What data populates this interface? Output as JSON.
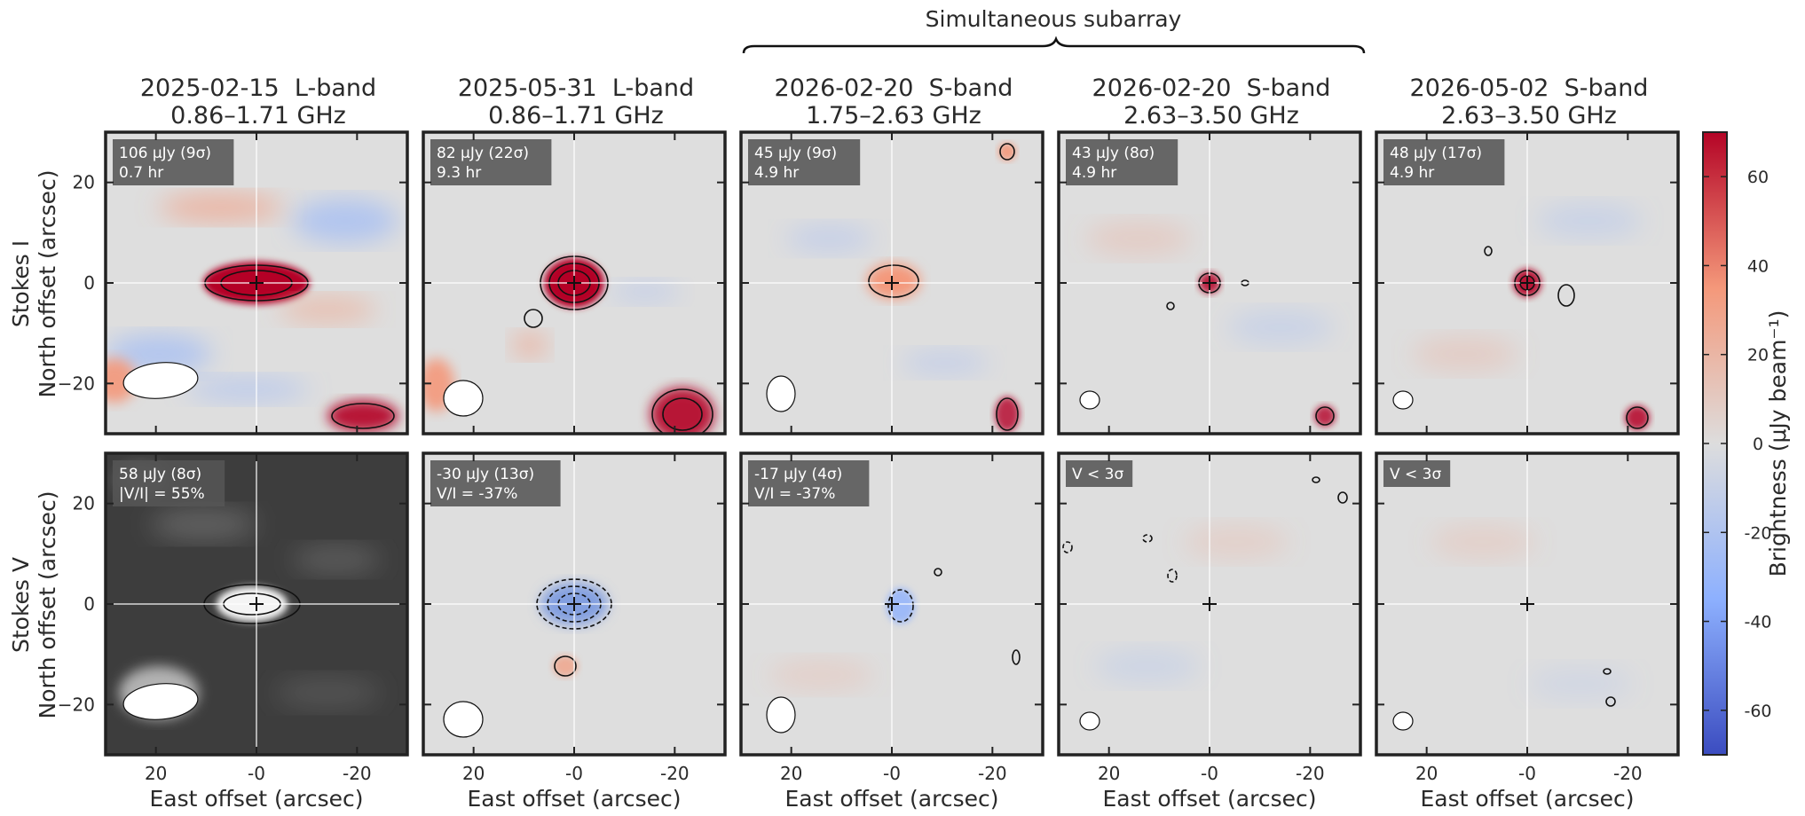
{
  "figure": {
    "bracket_label": "Simultaneous subarray",
    "row_labels": [
      "Stokes I",
      "Stokes V"
    ],
    "y_axis_label": "North offset (arcsec)",
    "x_axis_label": "East offset (arcsec)",
    "colorbar_label": "Brightness (μJy beam⁻¹)"
  },
  "columns": [
    {
      "date": "2025-02-15",
      "band": "L-band",
      "freq": "0.86–1.71 GHz"
    },
    {
      "date": "2025-05-31",
      "band": "L-band",
      "freq": "0.86–1.71 GHz"
    },
    {
      "date": "2026-02-20",
      "band": "S-band",
      "freq": "1.75–2.63 GHz"
    },
    {
      "date": "2026-02-20",
      "band": "S-band",
      "freq": "2.63–3.50 GHz"
    },
    {
      "date": "2026-05-02",
      "band": "S-band",
      "freq": "2.63–3.50 GHz"
    }
  ],
  "chart_data": [
    {
      "type": "heatmap",
      "panel": "Stokes I 2025-02-15 L-band",
      "annotation": [
        "106 μJy (9σ)",
        "0.7 hr"
      ],
      "peak_uJy": 106,
      "snr": 9,
      "time_hr": 0.7,
      "source_position_arcsec": [
        0,
        0
      ],
      "colormap": "diverging"
    },
    {
      "type": "heatmap",
      "panel": "Stokes I 2025-05-31 L-band",
      "annotation": [
        "82 μJy (22σ)",
        "9.3 hr"
      ],
      "peak_uJy": 82,
      "snr": 22,
      "time_hr": 9.3,
      "source_position_arcsec": [
        0,
        0
      ],
      "colormap": "diverging"
    },
    {
      "type": "heatmap",
      "panel": "Stokes I 2026-02-20 S-band 1.75–2.63 GHz",
      "annotation": [
        "45 μJy (9σ)",
        "4.9 hr"
      ],
      "peak_uJy": 45,
      "snr": 9,
      "time_hr": 4.9,
      "source_position_arcsec": [
        0,
        0
      ],
      "colormap": "diverging"
    },
    {
      "type": "heatmap",
      "panel": "Stokes I 2026-02-20 S-band 2.63–3.50 GHz",
      "annotation": [
        "43 μJy (8σ)",
        "4.9 hr"
      ],
      "peak_uJy": 43,
      "snr": 8,
      "time_hr": 4.9,
      "source_position_arcsec": [
        0,
        0
      ],
      "colormap": "diverging"
    },
    {
      "type": "heatmap",
      "panel": "Stokes I 2026-05-02 S-band",
      "annotation": [
        "48 μJy (17σ)",
        "4.9 hr"
      ],
      "peak_uJy": 48,
      "snr": 17,
      "time_hr": 4.9,
      "source_position_arcsec": [
        0,
        0
      ],
      "colormap": "diverging"
    },
    {
      "type": "heatmap",
      "panel": "Stokes V 2025-02-15 L-band",
      "annotation": [
        "58 μJy (8σ)",
        "|V/I| = 55%"
      ],
      "peak_uJy": 58,
      "snr": 8,
      "fraction_pct": 55,
      "source_position_arcsec": [
        0,
        0
      ],
      "colormap": "grayscale"
    },
    {
      "type": "heatmap",
      "panel": "Stokes V 2025-05-31 L-band",
      "annotation": [
        "-30 μJy (13σ)",
        "V/I = -37%"
      ],
      "peak_uJy": -30,
      "snr": 13,
      "fraction_pct": -37,
      "source_position_arcsec": [
        0,
        0
      ],
      "colormap": "diverging"
    },
    {
      "type": "heatmap",
      "panel": "Stokes V 2026-02-20 S-band 1.75–2.63 GHz",
      "annotation": [
        "-17 μJy (4σ)",
        "V/I = -37%"
      ],
      "peak_uJy": -17,
      "snr": 4,
      "fraction_pct": -37,
      "source_position_arcsec": [
        0,
        0
      ],
      "colormap": "diverging"
    },
    {
      "type": "heatmap",
      "panel": "Stokes V 2026-02-20 S-band 2.63–3.50 GHz",
      "annotation": [
        "V < 3σ"
      ],
      "source_position_arcsec": [
        0,
        0
      ],
      "colormap": "diverging"
    },
    {
      "type": "heatmap",
      "panel": "Stokes V 2026-05-02 S-band",
      "annotation": [
        "V < 3σ"
      ],
      "source_position_arcsec": [
        0,
        0
      ],
      "colormap": "diverging"
    }
  ],
  "axes": {
    "x_range_arcsec": [
      30,
      -30
    ],
    "y_range_arcsec": [
      -30,
      30
    ],
    "x_ticks": [
      "20",
      "-0",
      "-20"
    ],
    "y_ticks": [
      "20",
      "0",
      "−20"
    ]
  },
  "colorbar": {
    "range": [
      -70,
      70
    ],
    "ticks": [
      "60",
      "40",
      "20",
      "0",
      "-20",
      "-40",
      "-60"
    ],
    "colors": [
      "#3b4cc0",
      "#8db0fe",
      "#dddddd",
      "#f4987a",
      "#b40426"
    ]
  }
}
